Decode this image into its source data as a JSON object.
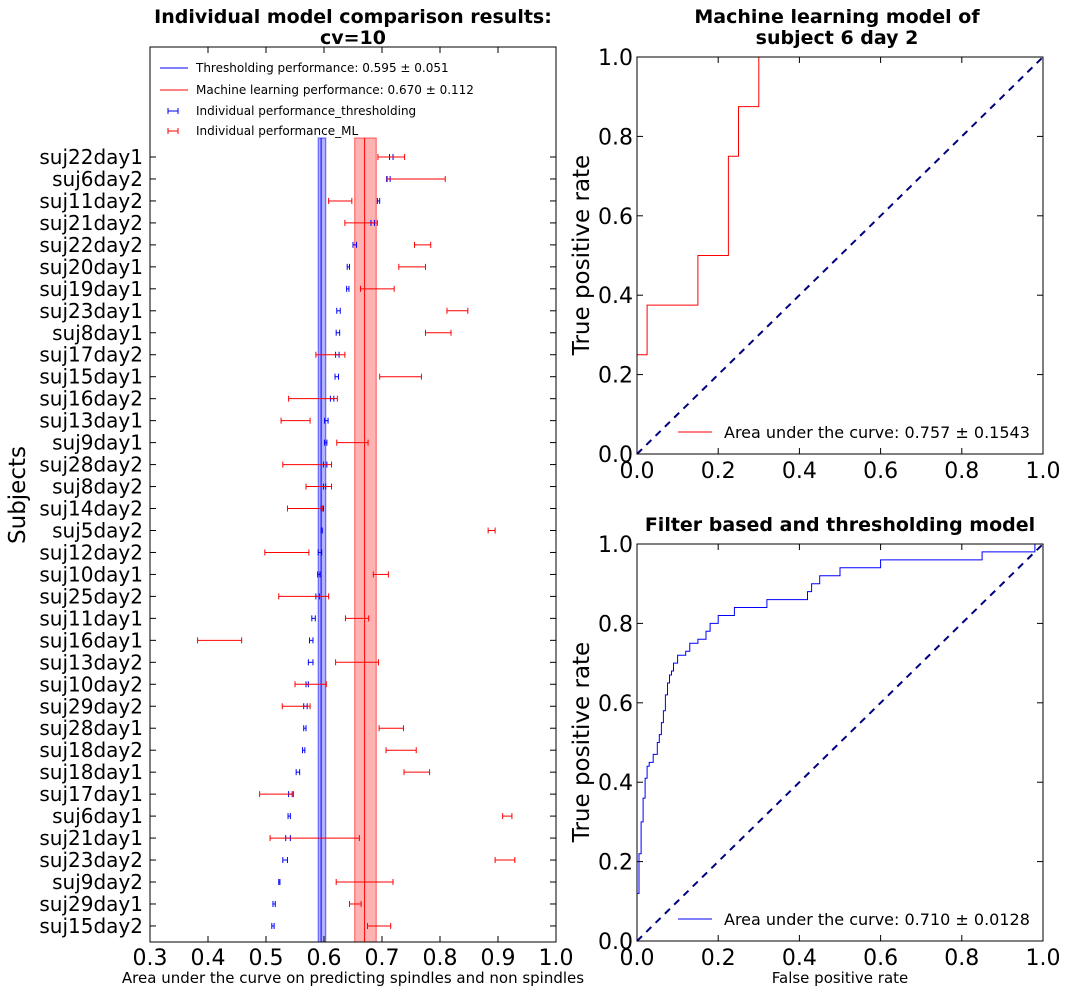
{
  "chart_data": [
    {
      "type": "errorbar",
      "title": "Individual model comparison results:",
      "subtitle": "cv=10",
      "xlabel": "Area under the curve on predicting spindles and non spindles",
      "ylabel": "Subjects",
      "xlim": [
        0.3,
        1.0
      ],
      "xticks": [
        "0.3",
        "0.4",
        "0.5",
        "0.6",
        "0.7",
        "0.8",
        "0.9",
        "1.0"
      ],
      "legend": [
        {
          "label": "Thresholding performance: 0.595 $\\pm$ 0.051",
          "display": "Thresholding performance: 0.595 ± 0.051",
          "color": "#0000ff",
          "kind": "line"
        },
        {
          "label": "Machine learning performance: 0.670 $\\pm$ 0.112",
          "display": "Machine learning performance: 0.670 ± 0.112",
          "color": "#ff0000",
          "kind": "line"
        },
        {
          "label": "Individual performance_thresholding",
          "display": "Individual performance_thresholding",
          "color": "#0000ff",
          "kind": "errorbar"
        },
        {
          "label": "Individual performance_ML",
          "display": "Individual performance_ML",
          "color": "#ff0000",
          "kind": "errorbar"
        }
      ],
      "bands": [
        {
          "name": "Thresholding performance",
          "center": 0.595,
          "low": 0.59,
          "high": 0.603,
          "color": "#0000ff"
        },
        {
          "name": "Machine learning performance",
          "center": 0.67,
          "low": 0.653,
          "high": 0.69,
          "color": "#ff0000"
        }
      ],
      "subjects": [
        "suj22day1",
        "suj6day2",
        "suj11day2",
        "suj21day2",
        "suj22day2",
        "suj20day1",
        "suj19day1",
        "suj23day1",
        "suj8day1",
        "suj17day2",
        "suj15day1",
        "suj16day2",
        "suj13day1",
        "suj9day1",
        "suj28day2",
        "suj8day2",
        "suj14day2",
        "suj5day2",
        "suj12day2",
        "suj10day1",
        "suj25day2",
        "suj11day1",
        "suj16day1",
        "suj13day2",
        "suj10day2",
        "suj29day2",
        "suj28day1",
        "suj18day2",
        "suj18day1",
        "suj17day1",
        "suj6day1",
        "suj21day1",
        "suj23day2",
        "suj9day2",
        "suj29day1",
        "suj15day2"
      ],
      "series": [
        {
          "name": "Individual performance_thresholding",
          "color": "#0000ff",
          "mean": [
            0.716,
            0.711,
            0.694,
            0.684,
            0.653,
            0.642,
            0.641,
            0.625,
            0.624,
            0.623,
            0.622,
            0.614,
            0.604,
            0.603,
            0.602,
            0.601,
            0.597,
            0.596,
            0.593,
            0.591,
            0.589,
            0.582,
            0.578,
            0.577,
            0.571,
            0.568,
            0.567,
            0.565,
            0.555,
            0.543,
            0.54,
            0.538,
            0.533,
            0.523,
            0.514,
            0.512
          ],
          "err": [
            0.003,
            0.003,
            0.002,
            0.003,
            0.003,
            0.002,
            0.002,
            0.003,
            0.003,
            0.003,
            0.003,
            0.003,
            0.003,
            0.002,
            0.003,
            0.002,
            0.002,
            0.001,
            0.003,
            0.002,
            0.003,
            0.003,
            0.003,
            0.004,
            0.002,
            0.003,
            0.002,
            0.002,
            0.003,
            0.004,
            0.002,
            0.004,
            0.004,
            0.001,
            0.002,
            0.002
          ]
        },
        {
          "name": "Individual performance_ML",
          "color": "#ff0000",
          "mean": [
            0.716,
            0.759,
            0.628,
            0.664,
            0.77,
            0.752,
            0.692,
            0.83,
            0.797,
            0.611,
            0.732,
            0.581,
            0.551,
            0.649,
            0.571,
            0.591,
            0.567,
            0.889,
            0.536,
            0.698,
            0.565,
            0.657,
            0.42,
            0.657,
            0.577,
            0.552,
            0.716,
            0.733,
            0.76,
            0.517,
            0.916,
            0.584,
            0.912,
            0.67,
            0.654,
            0.695
          ],
          "err": [
            0.023,
            0.05,
            0.02,
            0.028,
            0.014,
            0.023,
            0.029,
            0.018,
            0.022,
            0.025,
            0.036,
            0.042,
            0.025,
            0.027,
            0.042,
            0.022,
            0.03,
            0.006,
            0.038,
            0.013,
            0.043,
            0.02,
            0.038,
            0.037,
            0.027,
            0.024,
            0.021,
            0.026,
            0.022,
            0.028,
            0.008,
            0.077,
            0.017,
            0.049,
            0.01,
            0.02
          ]
        }
      ]
    },
    {
      "type": "line",
      "title": "Machine learning model of",
      "subtitle": "subject 6 day 2",
      "xlabel": "",
      "ylabel": "True positive rate",
      "xlim": [
        0.0,
        1.0
      ],
      "ylim": [
        0.0,
        1.0
      ],
      "xticks": [
        "0.0",
        "0.2",
        "0.4",
        "0.6",
        "0.8",
        "1.0"
      ],
      "yticks": [
        "0.0",
        "0.2",
        "0.4",
        "0.6",
        "0.8",
        "1.0"
      ],
      "legend": [
        {
          "label": "Area under the curve: 0.757 $\\pm$ 0.1543",
          "display": "Area under the curve: 0.757 ± 0.1543",
          "color": "#ff0000"
        }
      ],
      "series": [
        {
          "name": "Area under the curve: 0.757 ± 0.1543",
          "color": "#ff0000",
          "x": [
            0.0,
            0.0,
            0.025,
            0.025,
            0.15,
            0.15,
            0.225,
            0.225,
            0.25,
            0.25,
            0.3,
            0.3,
            1.0
          ],
          "y": [
            0.0,
            0.25,
            0.25,
            0.375,
            0.375,
            0.5,
            0.5,
            0.75,
            0.75,
            0.875,
            0.875,
            1.0,
            1.0
          ]
        },
        {
          "name": "chance",
          "color": "#000080",
          "dashed": true,
          "x": [
            0.0,
            1.0
          ],
          "y": [
            0.0,
            1.0
          ]
        }
      ]
    },
    {
      "type": "line",
      "title": "Filter based and thresholding model",
      "xlabel": "False positive rate",
      "ylabel": "True positive rate",
      "xlim": [
        0.0,
        1.0
      ],
      "ylim": [
        0.0,
        1.0
      ],
      "xticks": [
        "0.0",
        "0.2",
        "0.4",
        "0.6",
        "0.8",
        "1.0"
      ],
      "yticks": [
        "0.0",
        "0.2",
        "0.4",
        "0.6",
        "0.8",
        "1.0"
      ],
      "legend": [
        {
          "label": "Area under the curve: 0.710 $\\pm$ 0.0128",
          "display": "Area under the curve: 0.710 ± 0.0128",
          "color": "#0000ff"
        }
      ],
      "series": [
        {
          "name": "Area under the curve: 0.710 ± 0.0128",
          "color": "#0000ff",
          "x": [
            0.0,
            0.0,
            0.005,
            0.005,
            0.01,
            0.01,
            0.015,
            0.015,
            0.02,
            0.02,
            0.025,
            0.025,
            0.03,
            0.03,
            0.04,
            0.04,
            0.05,
            0.05,
            0.055,
            0.055,
            0.06,
            0.06,
            0.065,
            0.065,
            0.07,
            0.07,
            0.075,
            0.075,
            0.08,
            0.08,
            0.085,
            0.085,
            0.09,
            0.09,
            0.1,
            0.1,
            0.12,
            0.12,
            0.13,
            0.13,
            0.15,
            0.15,
            0.17,
            0.17,
            0.18,
            0.18,
            0.2,
            0.2,
            0.24,
            0.24,
            0.32,
            0.32,
            0.42,
            0.42,
            0.43,
            0.43,
            0.45,
            0.45,
            0.5,
            0.5,
            0.6,
            0.6,
            0.85,
            0.85,
            0.98,
            0.98,
            1.0
          ],
          "y": [
            0.0,
            0.12,
            0.12,
            0.22,
            0.22,
            0.3,
            0.3,
            0.36,
            0.36,
            0.41,
            0.41,
            0.44,
            0.44,
            0.45,
            0.45,
            0.47,
            0.47,
            0.5,
            0.5,
            0.52,
            0.52,
            0.55,
            0.55,
            0.58,
            0.58,
            0.62,
            0.62,
            0.65,
            0.65,
            0.67,
            0.67,
            0.68,
            0.68,
            0.7,
            0.7,
            0.72,
            0.72,
            0.73,
            0.73,
            0.75,
            0.75,
            0.76,
            0.76,
            0.78,
            0.78,
            0.8,
            0.8,
            0.82,
            0.82,
            0.84,
            0.84,
            0.86,
            0.86,
            0.88,
            0.88,
            0.9,
            0.9,
            0.92,
            0.92,
            0.94,
            0.94,
            0.96,
            0.96,
            0.98,
            0.98,
            1.0,
            1.0
          ]
        },
        {
          "name": "chance",
          "color": "#000080",
          "dashed": true,
          "x": [
            0.0,
            1.0
          ],
          "y": [
            0.0,
            1.0
          ]
        }
      ]
    }
  ]
}
